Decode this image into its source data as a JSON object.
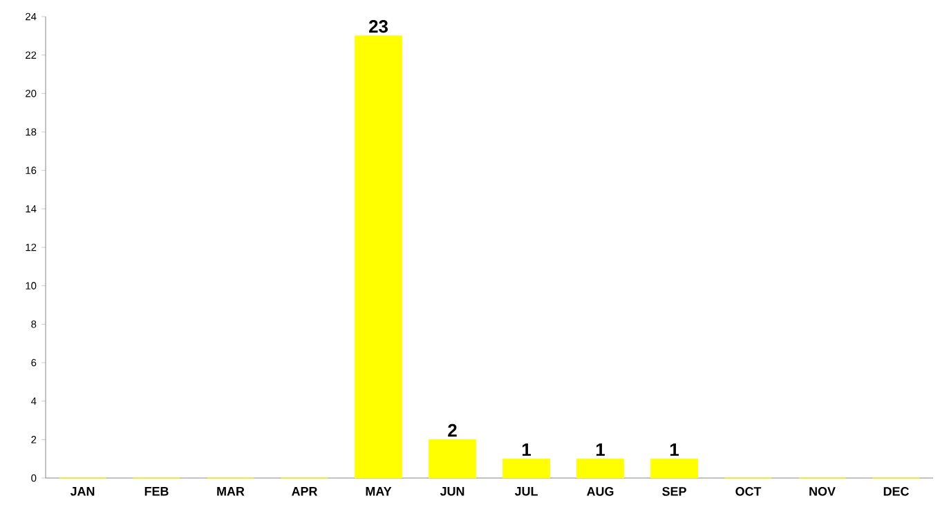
{
  "chart_data": {
    "type": "bar",
    "categories": [
      "JAN",
      "FEB",
      "MAR",
      "APR",
      "MAY",
      "JUN",
      "JUL",
      "AUG",
      "SEP",
      "OCT",
      "NOV",
      "DEC"
    ],
    "values": [
      0,
      0,
      0,
      0,
      23,
      2,
      1,
      1,
      1,
      0,
      0,
      0
    ],
    "value_labels": [
      null,
      null,
      null,
      null,
      "23",
      "2",
      "1",
      "1",
      "1",
      null,
      null,
      null
    ],
    "color": "#ffff00",
    "ylim": [
      0,
      24
    ],
    "yticks": [
      0,
      2,
      4,
      6,
      8,
      10,
      12,
      14,
      16,
      18,
      20,
      22,
      24
    ]
  }
}
